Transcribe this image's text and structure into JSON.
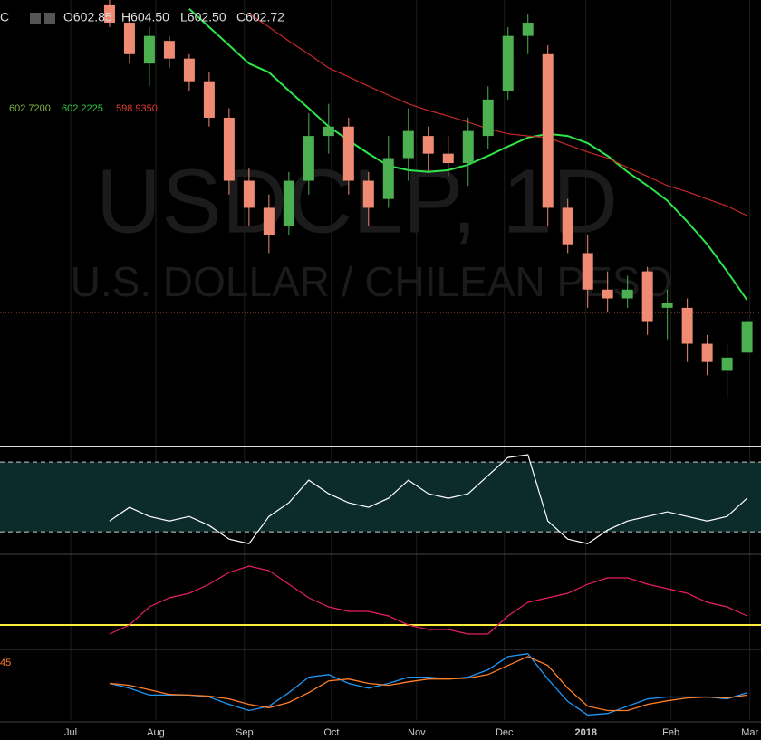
{
  "header": {
    "symbol": "C",
    "open": "O602.85",
    "high": "H604.50",
    "low": "L602.50",
    "close": "C602.72"
  },
  "indicator_values": {
    "first": "602.7200",
    "second": "602.2225",
    "third": "598.9350"
  },
  "watermark": {
    "symbol": "USDCLP, 1D",
    "description": "U.S. DOLLAR / CHILEAN PESO"
  },
  "chart_data": [
    {
      "type": "candlestick",
      "xlim": [
        -5.5,
        32.7
      ],
      "ylim": [
        578.9,
        659.2
      ],
      "up_color": "#4caf50",
      "down_color": "#ef8a73",
      "open": [
        658.4,
        655.1,
        647.7,
        651.8,
        648.6,
        644.5,
        637.9,
        626.5,
        621.6,
        618.3,
        626.5,
        634.6,
        636.3,
        626.5,
        623.2,
        630.6,
        634.6,
        631.4,
        629.7,
        634.6,
        642.8,
        652.7,
        649.4,
        621.6,
        613.4,
        606.8,
        605.2,
        610.1,
        603.5,
        603.5,
        597.0,
        592.1,
        595.4
      ],
      "high": [
        659.2,
        655.9,
        654.3,
        652.7,
        649.4,
        646.1,
        639.6,
        628.9,
        624.0,
        628.1,
        638.7,
        640.4,
        637.9,
        628.1,
        634.6,
        639.6,
        636.3,
        634.6,
        637.9,
        643.6,
        654.3,
        656.7,
        651.0,
        623.2,
        616.6,
        610.1,
        609.3,
        610.9,
        606.8,
        605.2,
        598.6,
        597.0,
        601.9
      ],
      "low": [
        654.3,
        647.7,
        643.6,
        646.9,
        642.8,
        636.3,
        624.0,
        618.3,
        613.4,
        616.6,
        624.0,
        631.4,
        624.0,
        618.3,
        621.6,
        626.5,
        628.1,
        627.3,
        625.6,
        632.2,
        641.2,
        649.4,
        618.3,
        613.4,
        603.5,
        602.7,
        603.5,
        598.6,
        597.8,
        593.7,
        591.3,
        587.2,
        594.5
      ],
      "close": [
        655.1,
        649.4,
        652.7,
        648.6,
        644.5,
        637.9,
        626.5,
        621.6,
        616.6,
        626.5,
        634.6,
        636.3,
        626.5,
        621.6,
        630.6,
        635.5,
        631.4,
        629.7,
        635.5,
        641.2,
        652.7,
        655.1,
        621.6,
        615.0,
        606.8,
        605.2,
        606.8,
        601.1,
        604.4,
        597.0,
        593.7,
        594.5,
        601.1
      ],
      "overlays": [
        {
          "color": "#2ee54a",
          "values": [
            null,
            null,
            null,
            null,
            657.6,
            654.3,
            651.0,
            647.7,
            646.1,
            642.8,
            639.6,
            636.3,
            633.8,
            631.4,
            629.2,
            628.4,
            628.1,
            628.4,
            629.4,
            631.0,
            632.7,
            634.3,
            635.0,
            634.6,
            633.3,
            631.0,
            628.1,
            625.6,
            622.9,
            619.1,
            615.0,
            610.1,
            604.9
          ]
        },
        {
          "color": "#c62828",
          "values": [
            null,
            null,
            null,
            null,
            null,
            null,
            null,
            656.7,
            654.3,
            651.8,
            649.4,
            646.9,
            645.3,
            643.6,
            642.0,
            640.4,
            639.2,
            638.2,
            637.1,
            635.9,
            635.0,
            634.6,
            634.3,
            633.0,
            631.7,
            630.6,
            628.9,
            627.3,
            625.6,
            624.5,
            623.2,
            621.9,
            620.2
          ]
        }
      ]
    },
    {
      "type": "line",
      "xlim": [
        -5.5,
        32.7
      ],
      "ylim": [
        18.1,
        76.8
      ],
      "levels": [
        30,
        70
      ],
      "color": "#ffffff",
      "band_color": "#0c2b2b",
      "values": [
        36.2,
        44.0,
        38.8,
        36.2,
        38.8,
        33.6,
        25.8,
        23.2,
        38.8,
        46.6,
        59.6,
        51.8,
        46.6,
        44.0,
        49.2,
        59.6,
        51.8,
        49.2,
        51.8,
        62.2,
        72.6,
        74.2,
        36.2,
        25.8,
        23.2,
        31.0,
        36.2,
        38.8,
        41.4,
        38.8,
        36.2,
        38.8,
        49.2
      ]
    },
    {
      "type": "line",
      "xlim": [
        -5.5,
        32.7
      ],
      "ylim": [
        0,
        50
      ],
      "levels": [
        12.5
      ],
      "color": "#e91e63",
      "level_color": "#ffeb3b",
      "values": [
        7.5,
        12.5,
        22.5,
        27.5,
        30,
        35,
        41.5,
        45,
        42.5,
        35,
        27.5,
        22.5,
        20,
        20,
        17.5,
        12.5,
        10,
        10,
        7.5,
        7.5,
        17.5,
        25,
        27.5,
        30,
        35,
        38.5,
        38.5,
        35,
        32.5,
        30,
        25,
        22.5,
        17.5
      ]
    },
    {
      "type": "line",
      "xlim": [
        -5.5,
        32.7
      ],
      "ylim": [
        -13,
        8.5
      ],
      "label": "45",
      "xticks": [
        {
          "value": -1.95,
          "label": "Jul"
        },
        {
          "value": 2.32,
          "label": "Aug"
        },
        {
          "value": 6.77,
          "label": "Sep"
        },
        {
          "value": 11.14,
          "label": "Oct"
        },
        {
          "value": 15.41,
          "label": "Nov"
        },
        {
          "value": 19.82,
          "label": "Dec"
        },
        {
          "value": 23.91,
          "label": "2018"
        },
        {
          "value": 28.18,
          "label": "Feb"
        },
        {
          "value": 32.14,
          "label": "Mar"
        }
      ],
      "series": [
        {
          "color": "#2196f3",
          "values": [
            -1.4,
            -2.9,
            -5.1,
            -5.1,
            -5.1,
            -5.7,
            -8.0,
            -10.0,
            -8.6,
            -4.3,
            0.6,
            1.4,
            -1.4,
            -2.9,
            -1.4,
            0.6,
            0.6,
            0,
            0.6,
            2.9,
            7.1,
            8.0,
            0,
            -7.1,
            -11.4,
            -10.9,
            -8.6,
            -6.3,
            -5.7,
            -5.7,
            -5.7,
            -6.3,
            -4.3
          ]
        },
        {
          "color": "#ff7f27",
          "values": [
            -1.4,
            -2.0,
            -3.4,
            -4.9,
            -5.1,
            -5.4,
            -6.3,
            -8.0,
            -9.1,
            -7.4,
            -4.3,
            -0.6,
            0,
            -1.4,
            -2.0,
            -0.9,
            0,
            0,
            0.3,
            1.4,
            4.3,
            7.1,
            4.3,
            -2.9,
            -8.6,
            -10.0,
            -10.0,
            -8.0,
            -6.9,
            -6.0,
            -5.7,
            -6.0,
            -5.1
          ]
        }
      ]
    }
  ]
}
